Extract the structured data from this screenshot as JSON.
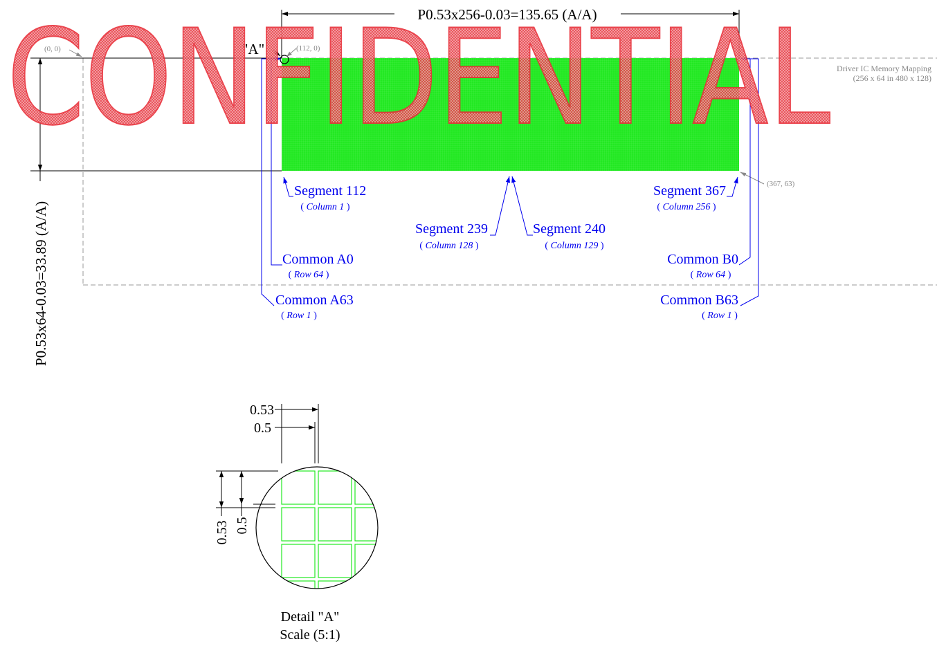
{
  "watermark": {
    "text": "CONFIDENTIAL",
    "color": "#e8303a"
  },
  "colors": {
    "active_area": "#22e822",
    "label": "#0000ee",
    "dimension": "#000000",
    "reference": "#888888"
  },
  "dimensions": {
    "width_label": "P0.53x256-0.03=135.65 (A/A)",
    "height_label": "P0.53x64-0.03=33.89 (A/A)"
  },
  "detail_marker": {
    "label": "\"A\""
  },
  "coordinates": {
    "origin": "(0, 0)",
    "top_left": "(112, 0)",
    "bottom_right": "(367, 63)"
  },
  "mapping_note": {
    "title": "Driver IC Memory Mapping",
    "subtitle": "(256 x 64 in 480 x 128)"
  },
  "segments": {
    "first": {
      "name": "Segment 112",
      "column": "Column 1"
    },
    "mid_left": {
      "name": "Segment 239",
      "column": "Column 128"
    },
    "mid_right": {
      "name": "Segment 240",
      "column": "Column 129"
    },
    "last": {
      "name": "Segment 367",
      "column": "Column 256"
    }
  },
  "commons": {
    "a0": {
      "name": "Common A0",
      "row": "Row 64"
    },
    "a63": {
      "name": "Common A63",
      "row": "Row 1"
    },
    "b0": {
      "name": "Common B0",
      "row": "Row 64"
    },
    "b63": {
      "name": "Common B63",
      "row": "Row 1"
    }
  },
  "paren_open": "( ",
  "paren_close": " )",
  "detail": {
    "pitch_label": "0.53",
    "pixel_label": "0.5",
    "title": "Detail \"A\"",
    "scale": "Scale (5:1)"
  }
}
